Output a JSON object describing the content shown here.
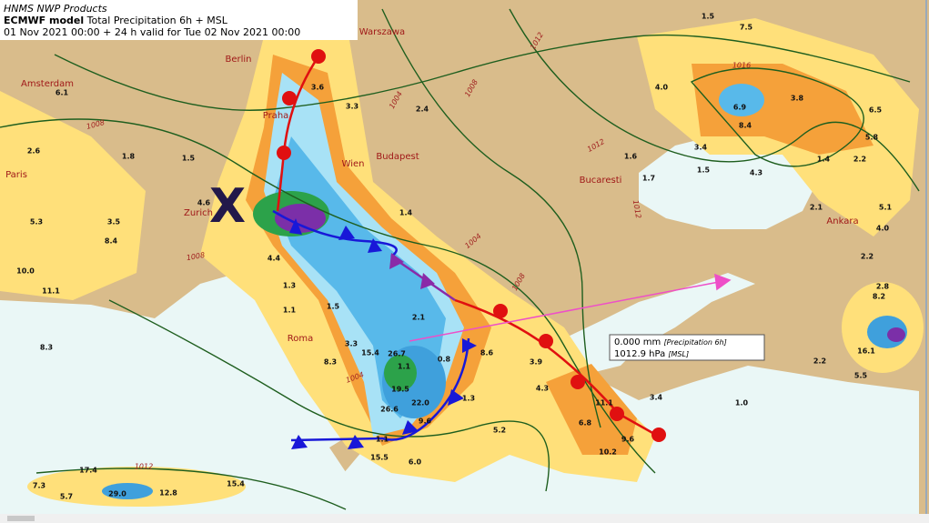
{
  "header": {
    "source": "HNMS NWP Products",
    "model": "ECMWF model",
    "product": "Total Precipitation 6h + MSL",
    "run": "01 Nov 2021 00:00 + 24 h valid for Tue 02 Nov 2021 00:00"
  },
  "cities": [
    "Berlin",
    "Warszawa",
    "Amsterdam",
    "Praha",
    "Paris",
    "Wien",
    "Budapest",
    "Zurich",
    "Bucaresti",
    "Ankara",
    "Roma"
  ],
  "precipitation_labels": [
    "6.1",
    "2.6",
    "1.8",
    "1.5",
    "3.6",
    "3.3",
    "2.4",
    "4.6",
    "5.3",
    "3.5",
    "8.4",
    "10.0",
    "11.1",
    "1.3",
    "1.1",
    "1.5",
    "4.4",
    "1.6",
    "1.5",
    "1.7",
    "1.5",
    "7.5",
    "4.0",
    "6.9",
    "8.4",
    "3.8",
    "6.5",
    "5.8",
    "3.4",
    "4.3",
    "1.4",
    "2.2",
    "2.1",
    "5.1",
    "4.0",
    "2.2",
    "2.8",
    "8.2",
    "16.1",
    "2.2",
    "5.5",
    "1.0",
    "3.4",
    "11.1",
    "6.8",
    "9.6",
    "10.2",
    "4.3",
    "8.6",
    "3.9",
    "5.2",
    "3.3",
    "8.3",
    "15.4",
    "26.7",
    "19.5",
    "22.0",
    "26.6",
    "9.6",
    "1.1",
    "15.5",
    "6.0",
    "8.3",
    "17.4",
    "7.3",
    "5.7",
    "29.0",
    "12.8",
    "15.4",
    "1.4",
    "2.1",
    "0.8",
    "1.3",
    "1.1"
  ],
  "isobar_labels": [
    "1012",
    "1008",
    "1004",
    "1008",
    "1012",
    "1016",
    "1004",
    "1008",
    "1012",
    "1012",
    "1008",
    "1004"
  ],
  "low_marker": "X",
  "tooltip": {
    "precip_value": "0.000 mm",
    "precip_name": "[Precipitation 6h]",
    "mslp_value": "1012.9 hPa",
    "mslp_name": "[MSL]"
  }
}
